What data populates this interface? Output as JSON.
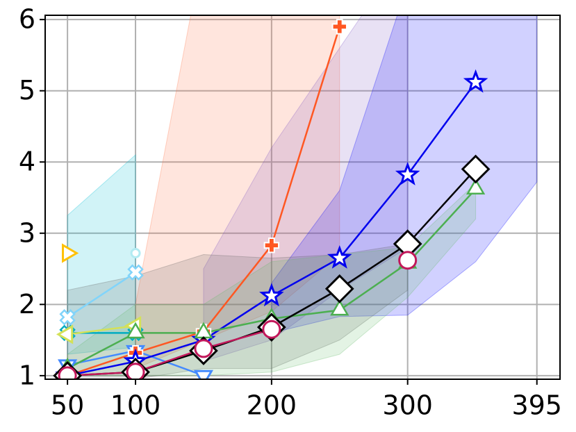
{
  "chart_data": {
    "type": "line",
    "x": [
      50,
      100,
      150,
      200,
      250,
      300,
      350
    ],
    "xlim": [
      33.6,
      412
    ],
    "ylim": [
      0.95,
      6.06
    ],
    "xticks": [
      50,
      100,
      200,
      300,
      395
    ],
    "yticks": [
      1,
      2,
      3,
      4,
      5,
      6
    ],
    "grid": true,
    "bands": [
      {
        "color": "#00bcd4",
        "x": [
          50,
          100
        ],
        "lower": [
          1.3,
          1.4
        ],
        "upper": [
          3.25,
          4.1
        ]
      },
      {
        "color": "#ff7043",
        "x": [
          100,
          150,
          200,
          250
        ],
        "lower": [
          1.1,
          1.5,
          1.9,
          2.7
        ],
        "upper": [
          2.0,
          7,
          7,
          7
        ]
      },
      {
        "color": "#7e57c2",
        "x": [
          150,
          200,
          250,
          300
        ],
        "lower": [
          1.2,
          1.5,
          2.2,
          2.8
        ],
        "upper": [
          2.5,
          4.2,
          5.6,
          7
        ]
      },
      {
        "color": "#0000ff",
        "x": [
          200,
          250,
          300,
          350,
          395
        ],
        "lower": [
          1.6,
          1.83,
          1.85,
          2.6,
          3.72
        ],
        "upper": [
          2.3,
          3.6,
          6.5,
          7,
          7
        ]
      },
      {
        "color": "#616161",
        "x": [
          50,
          100,
          150,
          200,
          250,
          300
        ],
        "lower": [
          0.95,
          0.95,
          1.1,
          1.1,
          1.5,
          2.2
        ],
        "upper": [
          2.2,
          2.4,
          2.7,
          2.65,
          2.7,
          2.85
        ]
      },
      {
        "color": "#66bb6a",
        "x": [
          50,
          100,
          150,
          200,
          250,
          300,
          350
        ],
        "lower": [
          1.0,
          1.0,
          1.0,
          1.05,
          1.3,
          2.1,
          3.2
        ],
        "upper": [
          1.3,
          2.0,
          2.0,
          2.6,
          2.7,
          2.8,
          3.7
        ]
      }
    ],
    "series": [
      {
        "color": "#81d4fa",
        "marker": "x",
        "values": [
          1.82,
          2.45,
          null,
          null,
          null,
          null,
          null
        ]
      },
      {
        "color": "#b2ebf2",
        "marker": "circle",
        "values": [
          null,
          2.72,
          null,
          null,
          null,
          null,
          null
        ]
      },
      {
        "color": "#00acc1",
        "marker": "x",
        "values": [
          1.6,
          1.6,
          null,
          null,
          null,
          null,
          null
        ]
      },
      {
        "color": "#ffc107",
        "marker": "triangle-right",
        "values": [
          2.72,
          null,
          null,
          null,
          null,
          null,
          null
        ]
      },
      {
        "color": "#d4e157",
        "marker": "triangle-left",
        "values": [
          1.58,
          1.7,
          null,
          null,
          null,
          null,
          null
        ]
      },
      {
        "color": "#448aff",
        "marker": "triangle-down",
        "values": [
          1.15,
          1.35,
          1.0,
          null,
          null,
          null,
          null
        ]
      },
      {
        "color": "#ff5722",
        "marker": "plus",
        "values": [
          1.0,
          1.32,
          1.62,
          2.83,
          5.9,
          null,
          null
        ]
      },
      {
        "color": "#0000ee",
        "marker": "star",
        "values": [
          1.0,
          1.2,
          1.5,
          2.12,
          2.65,
          3.82,
          5.12
        ]
      },
      {
        "color": "#4caf50",
        "marker": "triangle-up",
        "values": [
          1.1,
          1.6,
          1.6,
          1.8,
          1.92,
          2.58,
          3.62
        ]
      },
      {
        "color": "#000000",
        "marker": "diamond",
        "values": [
          1.0,
          1.05,
          1.35,
          1.68,
          2.22,
          2.85,
          3.9
        ]
      },
      {
        "color": "#c2185b",
        "marker": "circle",
        "values": [
          1.0,
          1.05,
          1.38,
          1.65,
          null,
          2.62,
          null
        ]
      }
    ]
  }
}
